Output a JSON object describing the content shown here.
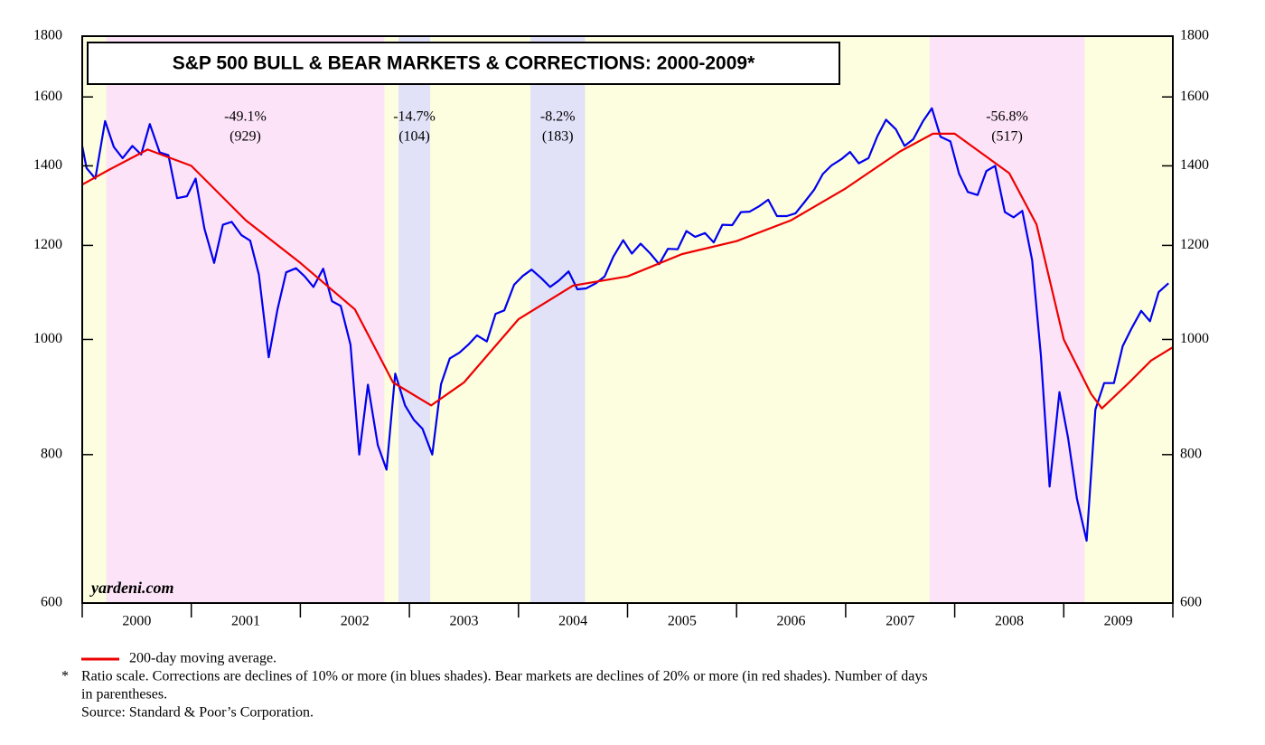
{
  "chart_data": {
    "type": "line",
    "title": "S&P 500 BULL & BEAR MARKETS & CORRECTIONS: 2000-2009*",
    "watermark": "yardeni.com",
    "yscale": "log",
    "ylim": [
      600,
      1800
    ],
    "yticks": [
      600,
      800,
      1000,
      1200,
      1400,
      1600,
      1800
    ],
    "xlim": [
      2000,
      2010
    ],
    "xticks": [
      2000,
      2001,
      2002,
      2003,
      2004,
      2005,
      2006,
      2007,
      2008,
      2009,
      2010
    ],
    "categories": [
      "2000",
      "2001",
      "2002",
      "2003",
      "2004",
      "2005",
      "2006",
      "2007",
      "2008",
      "2009"
    ],
    "background_color": "#fdfde0",
    "regions": [
      {
        "start": 2000.22,
        "end": 2002.77,
        "color": "#fde3f8",
        "label": "-49.1%",
        "days": "(929)"
      },
      {
        "start": 2002.9,
        "end": 2003.19,
        "color": "#e1e1f8",
        "label": "-14.7%",
        "days": "(104)"
      },
      {
        "start": 2004.11,
        "end": 2004.61,
        "color": "#e1e1f8",
        "label": "-8.2%",
        "days": "(183)"
      },
      {
        "start": 2007.77,
        "end": 2009.19,
        "color": "#fde3f8",
        "label": "-56.8%",
        "days": "(517)"
      }
    ],
    "series": [
      {
        "color": "#0000ee",
        "x": [
          2000.0,
          2000.04,
          2000.12,
          2000.21,
          2000.29,
          2000.37,
          2000.46,
          2000.54,
          2000.62,
          2000.71,
          2000.79,
          2000.87,
          2000.96,
          2001.04,
          2001.12,
          2001.21,
          2001.29,
          2001.37,
          2001.46,
          2001.54,
          2001.62,
          2001.71,
          2001.79,
          2001.87,
          2001.96,
          2002.04,
          2002.12,
          2002.21,
          2002.29,
          2002.37,
          2002.46,
          2002.54,
          2002.62,
          2002.71,
          2002.79,
          2002.87,
          2002.96,
          2003.04,
          2003.12,
          2003.21,
          2003.29,
          2003.37,
          2003.46,
          2003.54,
          2003.62,
          2003.71,
          2003.79,
          2003.87,
          2003.96,
          2004.04,
          2004.12,
          2004.21,
          2004.29,
          2004.37,
          2004.46,
          2004.54,
          2004.62,
          2004.71,
          2004.79,
          2004.87,
          2004.96,
          2005.04,
          2005.12,
          2005.21,
          2005.29,
          2005.37,
          2005.46,
          2005.54,
          2005.62,
          2005.71,
          2005.79,
          2005.87,
          2005.96,
          2006.04,
          2006.12,
          2006.21,
          2006.29,
          2006.37,
          2006.46,
          2006.54,
          2006.62,
          2006.71,
          2006.79,
          2006.87,
          2006.96,
          2007.04,
          2007.12,
          2007.21,
          2007.29,
          2007.37,
          2007.46,
          2007.54,
          2007.62,
          2007.71,
          2007.79,
          2007.87,
          2007.96,
          2008.04,
          2008.12,
          2008.21,
          2008.29,
          2008.37,
          2008.46,
          2008.54,
          2008.62,
          2008.71,
          2008.79,
          2008.87,
          2008.96,
          2009.04,
          2009.12,
          2009.21,
          2009.29,
          2009.37,
          2009.46,
          2009.54,
          2009.62,
          2009.71,
          2009.79,
          2009.87,
          2009.96
        ],
        "values": [
          1455,
          1394,
          1366,
          1527,
          1452,
          1421,
          1455,
          1431,
          1518,
          1437,
          1429,
          1315,
          1320,
          1366,
          1240,
          1160,
          1249,
          1256,
          1224,
          1211,
          1134,
          966,
          1060,
          1139,
          1148,
          1130,
          1107,
          1147,
          1077,
          1067,
          990,
          800,
          916,
          815,
          777,
          936,
          880,
          856,
          841,
          800,
          917,
          964,
          975,
          990,
          1008,
          996,
          1051,
          1058,
          1112,
          1131,
          1145,
          1126,
          1107,
          1121,
          1141,
          1102,
          1104,
          1115,
          1130,
          1174,
          1212,
          1181,
          1204,
          1181,
          1157,
          1192,
          1191,
          1234,
          1220,
          1229,
          1207,
          1249,
          1248,
          1280,
          1281,
          1295,
          1311,
          1270,
          1270,
          1277,
          1304,
          1336,
          1378,
          1401,
          1418,
          1438,
          1407,
          1421,
          1482,
          1531,
          1503,
          1455,
          1474,
          1527,
          1565,
          1481,
          1468,
          1379,
          1331,
          1323,
          1386,
          1400,
          1280,
          1267,
          1283,
          1166,
          969,
          752,
          903,
          826,
          735,
          677,
          873,
          919,
          919,
          987,
          1021,
          1057,
          1036,
          1096,
          1115
        ]
      },
      {
        "name": "200-day moving average.",
        "color": "#ee0000",
        "x": [
          2000.0,
          2000.25,
          2000.6,
          2001.0,
          2001.5,
          2002.0,
          2002.5,
          2002.85,
          2003.2,
          2003.5,
          2004.0,
          2004.5,
          2005.0,
          2005.5,
          2006.0,
          2006.5,
          2007.0,
          2007.5,
          2007.8,
          2008.0,
          2008.5,
          2008.75,
          2009.0,
          2009.25,
          2009.35,
          2009.6,
          2009.8,
          2010.0
        ],
        "values": [
          1350,
          1390,
          1445,
          1400,
          1260,
          1160,
          1060,
          920,
          880,
          920,
          1040,
          1110,
          1130,
          1180,
          1210,
          1260,
          1340,
          1440,
          1490,
          1490,
          1380,
          1250,
          1000,
          900,
          875,
          920,
          960,
          985
        ]
      }
    ],
    "notes": {
      "marker": "*",
      "lines": [
        "Ratio scale. Corrections are declines of 10% or more (in blues shades). Bear markets are declines of 20% or more (in red shades). Number of days",
        "in parentheses.",
        "Source: Standard & Poor’s Corporation."
      ]
    }
  }
}
